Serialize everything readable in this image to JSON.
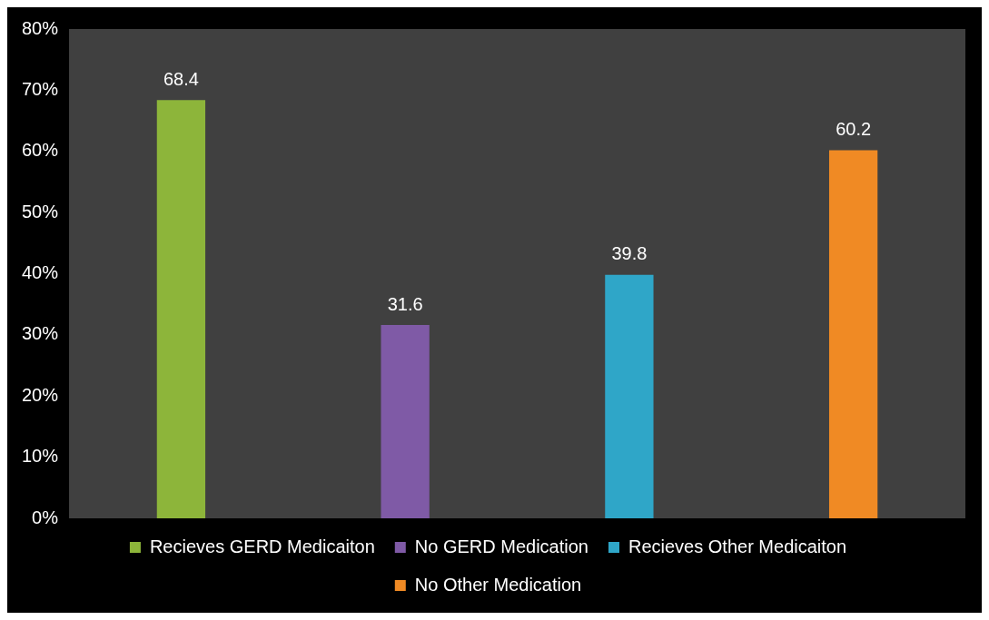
{
  "chart_data": {
    "type": "bar",
    "stacked": true,
    "categories": [
      null,
      null,
      null,
      null
    ],
    "series": [
      {
        "name": "Recieves GERD Medicaiton",
        "color": "#8db53a",
        "values": [
          68.4,
          null,
          null,
          null
        ]
      },
      {
        "name": "No GERD Medication",
        "color": "#7f5aa6",
        "values": [
          null,
          31.6,
          null,
          null
        ]
      },
      {
        "name": "Recieves Other Medicaiton",
        "color": "#2fa6c8",
        "values": [
          null,
          null,
          39.8,
          null
        ]
      },
      {
        "name": "No Other Medication",
        "color": "#f08a24",
        "values": [
          null,
          null,
          null,
          60.2
        ]
      }
    ],
    "ylim": [
      0,
      80
    ],
    "yticks": [
      {
        "value": 0,
        "label": "0%"
      },
      {
        "value": 10,
        "label": "10%"
      },
      {
        "value": 20,
        "label": "20%"
      },
      {
        "value": 30,
        "label": "30%"
      },
      {
        "value": 40,
        "label": "40%"
      },
      {
        "value": 50,
        "label": "50%"
      },
      {
        "value": 60,
        "label": "60%"
      },
      {
        "value": 70,
        "label": "70%"
      },
      {
        "value": 80,
        "label": "80%"
      }
    ],
    "grid": false,
    "legend": "bottom",
    "data_labels": true
  }
}
